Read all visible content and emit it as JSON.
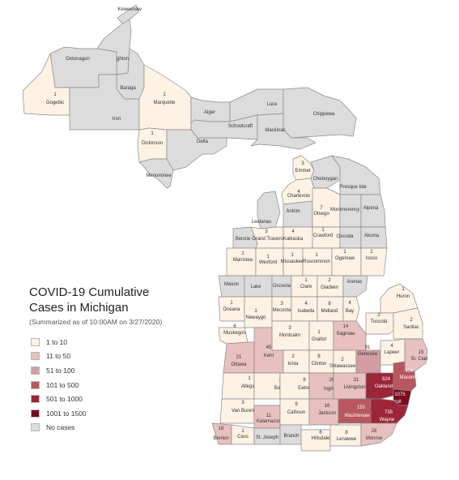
{
  "title_line1": "COVID-19 Cumulative",
  "title_line2": "Cases in Michigan",
  "subtitle": "(Summarized as of 10:00AM on 3/27/2020)",
  "legend": [
    {
      "label": "1 to 10",
      "color": "#fdf2e4"
    },
    {
      "label": "11 to 50",
      "color": "#e8c0bf"
    },
    {
      "label": "51 to 100",
      "color": "#d39da3"
    },
    {
      "label": "101 to 500",
      "color": "#b8575f"
    },
    {
      "label": "501 to 1000",
      "color": "#9c2538"
    },
    {
      "label": "1001 to 1500",
      "color": "#7a0a1e"
    },
    {
      "label": "No cases",
      "color": "#dcdcdc"
    }
  ],
  "counties": [
    {
      "name": "Keweenaw",
      "cases": null
    },
    {
      "name": "Houghton",
      "cases": null
    },
    {
      "name": "Ontonagon",
      "cases": null
    },
    {
      "name": "Baraga",
      "cases": null
    },
    {
      "name": "Gogebic",
      "cases": 1
    },
    {
      "name": "Iron",
      "cases": null
    },
    {
      "name": "Marquette",
      "cases": 1
    },
    {
      "name": "Alger",
      "cases": null
    },
    {
      "name": "Luce",
      "cases": null
    },
    {
      "name": "Schoolcraft",
      "cases": null
    },
    {
      "name": "Chippewa",
      "cases": null
    },
    {
      "name": "Mackinac",
      "cases": null
    },
    {
      "name": "Dickinson",
      "cases": 1
    },
    {
      "name": "Delta",
      "cases": null
    },
    {
      "name": "Menominee",
      "cases": null
    },
    {
      "name": "Emmet",
      "cases": 3
    },
    {
      "name": "Cheboygan",
      "cases": null
    },
    {
      "name": "Presque Isle",
      "cases": null
    },
    {
      "name": "Charlevoix",
      "cases": 4
    },
    {
      "name": "Antrim",
      "cases": null
    },
    {
      "name": "Otsego",
      "cases": 7
    },
    {
      "name": "Montmorency",
      "cases": null
    },
    {
      "name": "Alpena",
      "cases": null
    },
    {
      "name": "Leelanau",
      "cases": null
    },
    {
      "name": "Benzie",
      "cases": null
    },
    {
      "name": "Grand Traverse",
      "cases": 3
    },
    {
      "name": "Kalkaska",
      "cases": 4
    },
    {
      "name": "Crawford",
      "cases": 1
    },
    {
      "name": "Oscoda",
      "cases": null
    },
    {
      "name": "Alcona",
      "cases": null
    },
    {
      "name": "Manistee",
      "cases": 1
    },
    {
      "name": "Wexford",
      "cases": 1
    },
    {
      "name": "Missaukee",
      "cases": 1
    },
    {
      "name": "Roscommon",
      "cases": 1
    },
    {
      "name": "Ogemaw",
      "cases": 1
    },
    {
      "name": "Iosco",
      "cases": 1
    },
    {
      "name": "Mason",
      "cases": null
    },
    {
      "name": "Lake",
      "cases": null
    },
    {
      "name": "Osceola",
      "cases": null
    },
    {
      "name": "Clare",
      "cases": 1
    },
    {
      "name": "Gladwin",
      "cases": 2
    },
    {
      "name": "Arenac",
      "cases": null
    },
    {
      "name": "Huron",
      "cases": 1
    },
    {
      "name": "Oceana",
      "cases": 1
    },
    {
      "name": "Newaygo",
      "cases": 1
    },
    {
      "name": "Mecosta",
      "cases": 3
    },
    {
      "name": "Isabella",
      "cases": 4
    },
    {
      "name": "Midland",
      "cases": 8
    },
    {
      "name": "Bay",
      "cases": 4
    },
    {
      "name": "Tuscola",
      "cases": 2
    },
    {
      "name": "Sanilac",
      "cases": 2
    },
    {
      "name": "Muskegon",
      "cases": 6
    },
    {
      "name": "Montcalm",
      "cases": 3
    },
    {
      "name": "Gratiot",
      "cases": 1
    },
    {
      "name": "Saginaw",
      "cases": 14
    },
    {
      "name": "Ottawa",
      "cases": 21
    },
    {
      "name": "Kent",
      "cases": 45
    },
    {
      "name": "Ionia",
      "cases": 2
    },
    {
      "name": "Clinton",
      "cases": 8
    },
    {
      "name": "Shiawassee",
      "cases": 2
    },
    {
      "name": "Genesee",
      "cases": 91
    },
    {
      "name": "Lapeer",
      "cases": 4
    },
    {
      "name": "St. Clair",
      "cases": 15
    },
    {
      "name": "Allegan",
      "cases": 1
    },
    {
      "name": "Barry",
      "cases": 1
    },
    {
      "name": "Eaton",
      "cases": 8
    },
    {
      "name": "Ingham",
      "cases": 26
    },
    {
      "name": "Livingston",
      "cases": 31
    },
    {
      "name": "Oakland",
      "cases": 824
    },
    {
      "name": "Macomb",
      "cases": 404
    },
    {
      "name": "Van Buren",
      "cases": 3
    },
    {
      "name": "Kalamazoo",
      "cases": 11
    },
    {
      "name": "Calhoun",
      "cases": 9
    },
    {
      "name": "Jackson",
      "cases": 16
    },
    {
      "name": "Washtenaw",
      "cases": 150
    },
    {
      "name": "Detroit",
      "cases": 1075
    },
    {
      "name": "Wayne",
      "cases": 735
    },
    {
      "name": "Berrien",
      "cases": 18
    },
    {
      "name": "Cass",
      "cases": 1
    },
    {
      "name": "St. Joseph",
      "cases": null
    },
    {
      "name": "Branch",
      "cases": null
    },
    {
      "name": "Hillsdale",
      "cases": 6
    },
    {
      "name": "Lenawee",
      "cases": 8
    },
    {
      "name": "Monroe",
      "cases": 28
    }
  ]
}
